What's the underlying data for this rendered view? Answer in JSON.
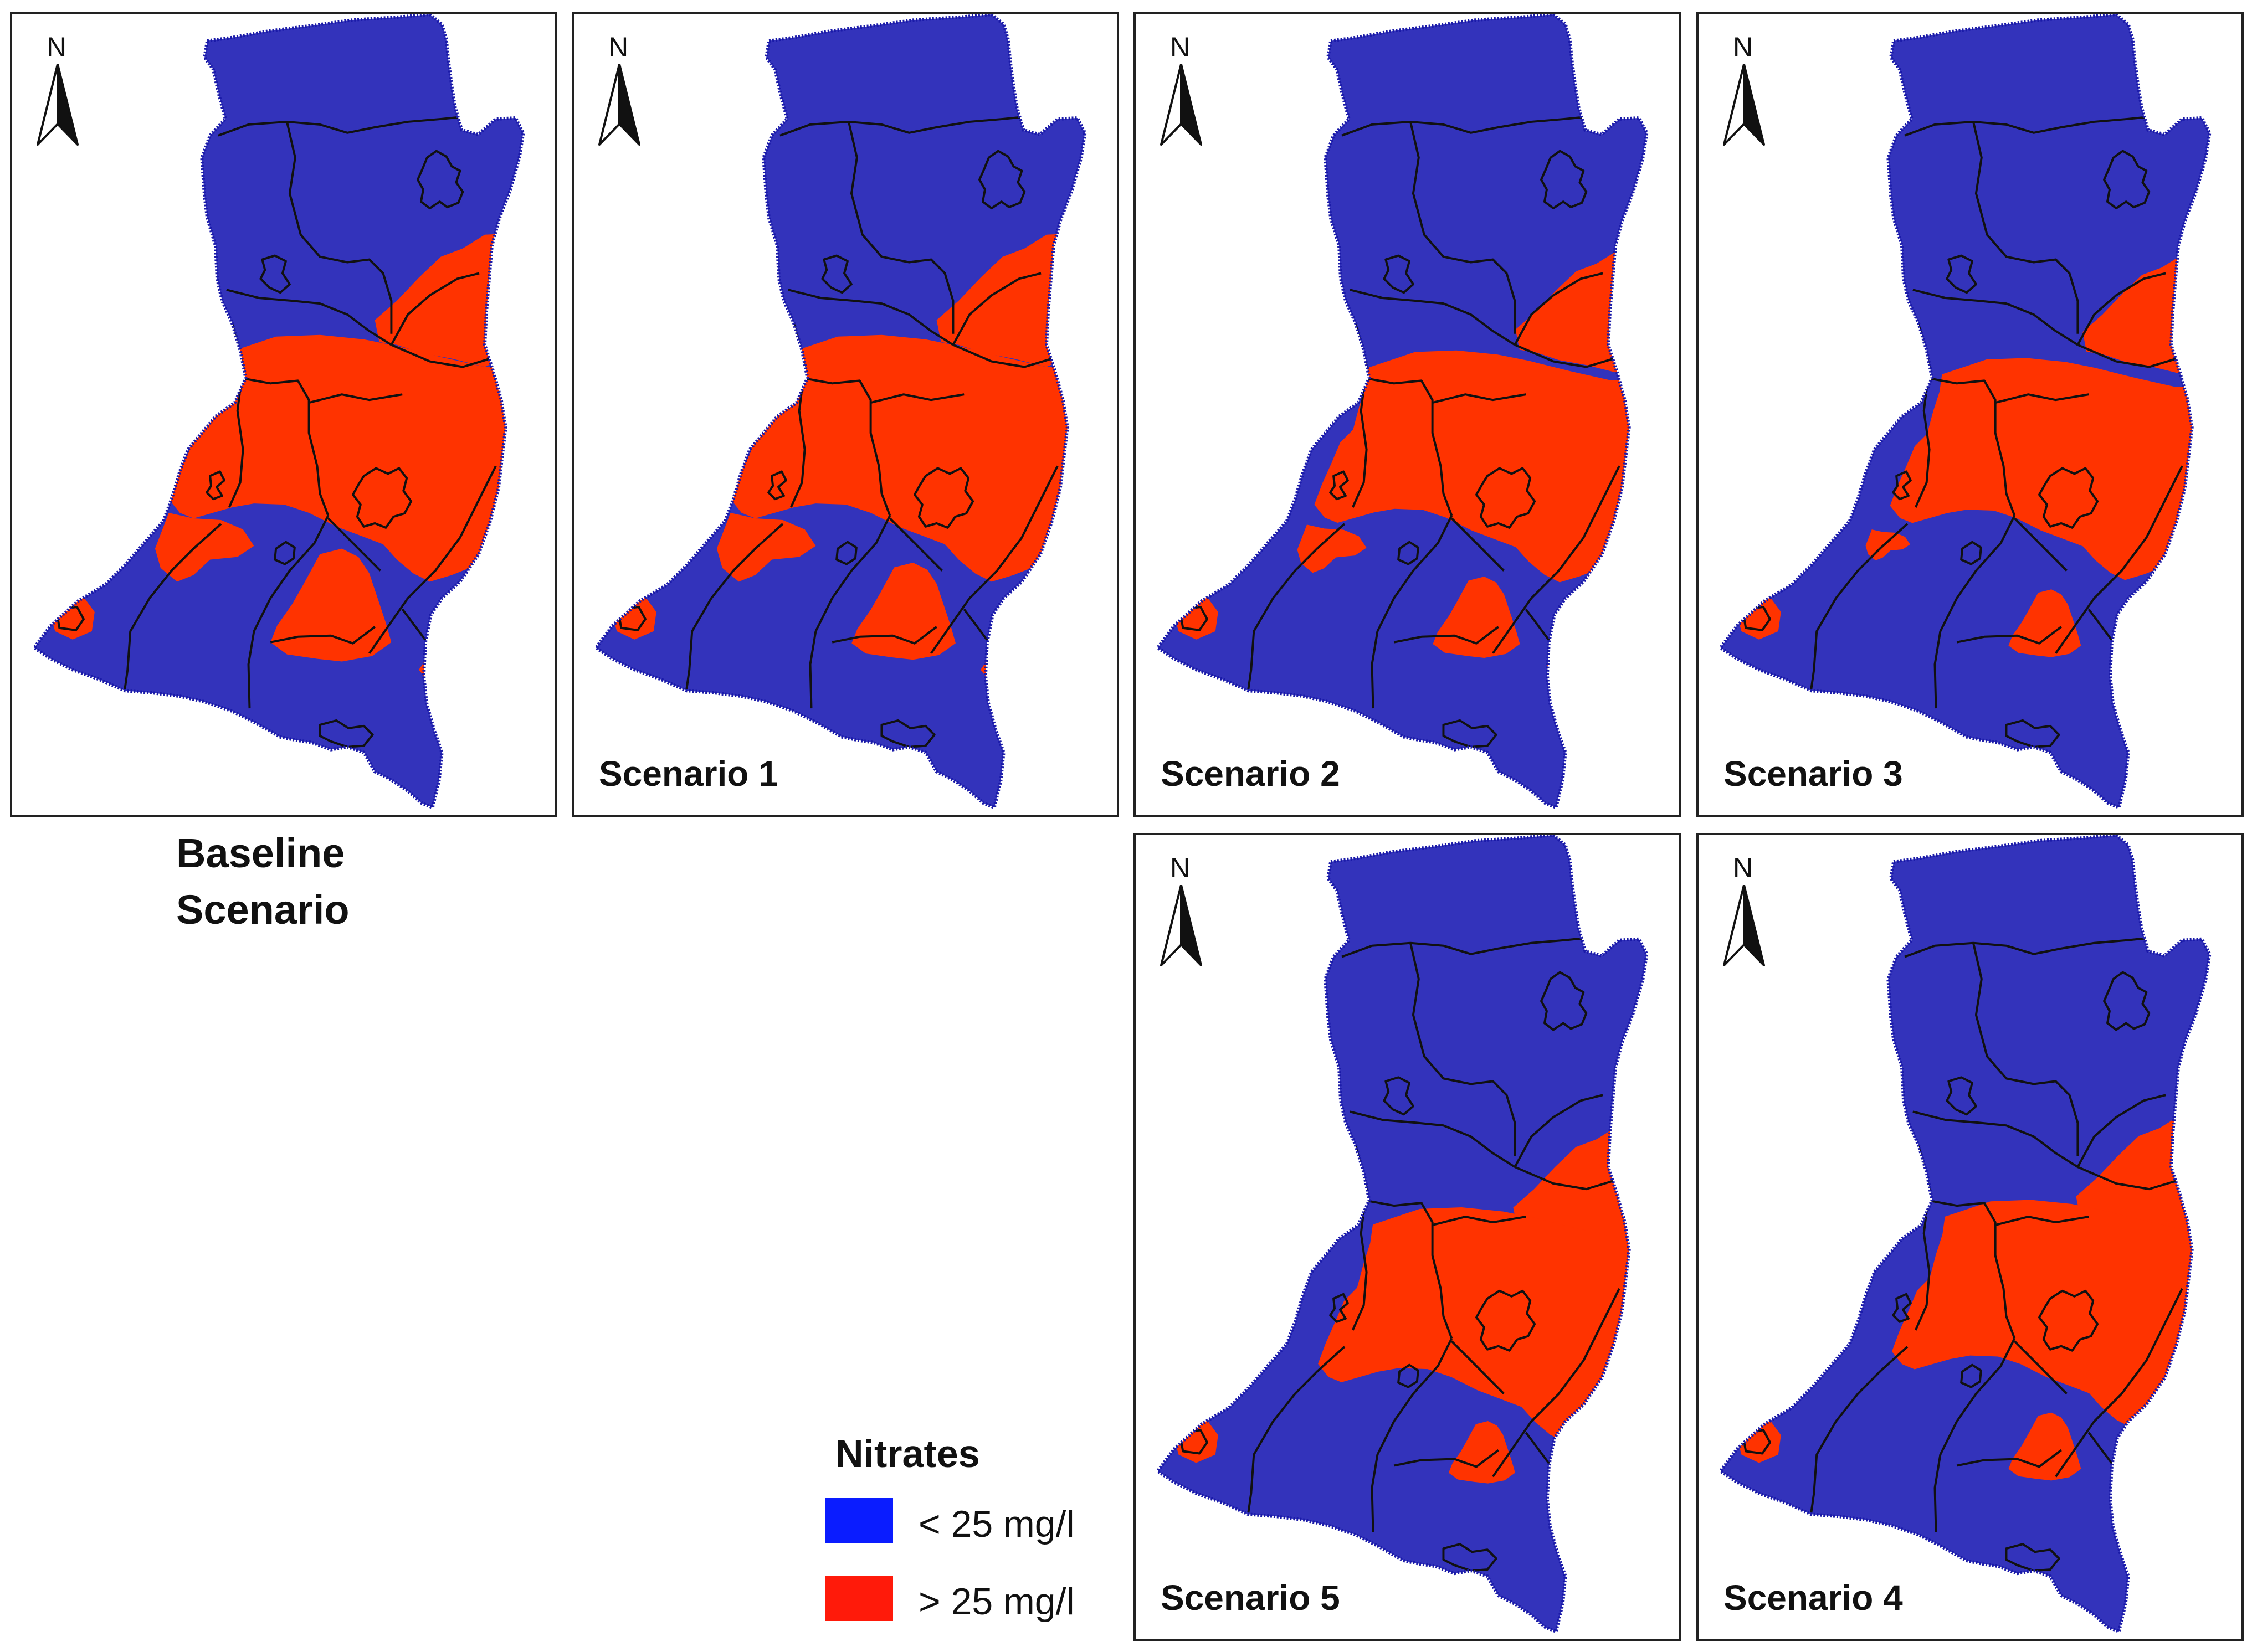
{
  "colors": {
    "low": "#3333bb",
    "high": "#ff3300",
    "legend_low": "#0a1cff",
    "legend_high": "#ff1a0a",
    "outline": "#111111"
  },
  "north_label": "N",
  "panels": [
    {
      "label": "",
      "high_zones": [
        "north-east",
        "central-belt",
        "west-lobe",
        "south-central-bulge",
        "east-strip",
        "south-west-patch"
      ]
    },
    {
      "label": "Scenario 1",
      "high_zones": [
        "north-east",
        "central-belt",
        "west-lobe",
        "south-central-bulge",
        "east-strip",
        "south-west-patch"
      ]
    },
    {
      "label": "Scenario 2",
      "high_zones": [
        "north-east",
        "central-belt",
        "west-lobe",
        "south-central-bulge",
        "east-strip",
        "south-west-patch"
      ]
    },
    {
      "label": "Scenario 3",
      "high_zones": [
        "north-east",
        "central-belt",
        "west-lobe",
        "south-central-bulge",
        "east-strip",
        "south-west-patch"
      ]
    },
    {
      "label": "Scenario 5",
      "high_zones": [
        "north-east",
        "central-belt",
        "south-central-bulge",
        "east-strip",
        "south-west-patch"
      ]
    },
    {
      "label": "Scenario 4",
      "high_zones": [
        "north-east",
        "central-belt",
        "south-central-bulge",
        "east-strip",
        "south-west-patch"
      ]
    }
  ],
  "baseline_label": {
    "line1": "Baseline",
    "line2": "Scenario"
  },
  "legend": {
    "title": "Nitrates",
    "items": [
      {
        "label": "< 25 mg/l",
        "color_key": "low"
      },
      {
        "label": "> 25 mg/l",
        "color_key": "high"
      }
    ]
  }
}
